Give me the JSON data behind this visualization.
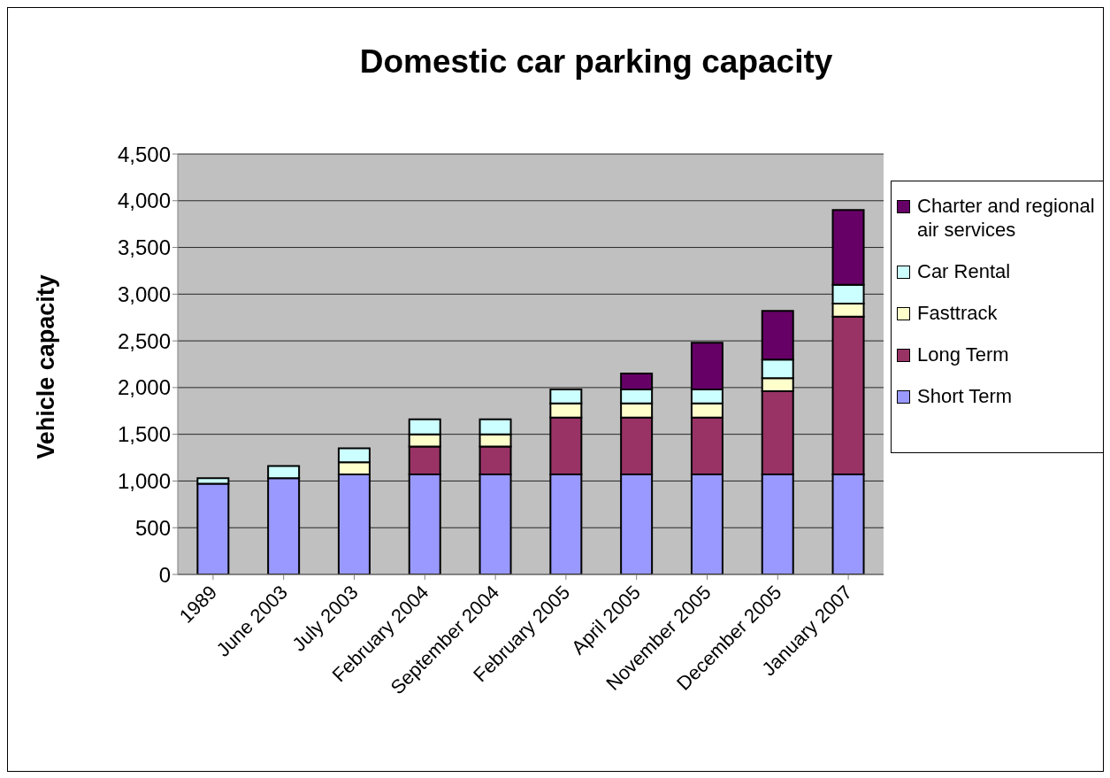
{
  "chart_data": {
    "type": "bar",
    "title": "Domestic car parking capacity",
    "ylabel": "Vehicle capacity",
    "categories": [
      "1989",
      "June 2003",
      "July 2003",
      "February 2004",
      "September 2004",
      "February 2005",
      "April 2005",
      "November 2005",
      "December 2005",
      "January 2007"
    ],
    "series": [
      {
        "name": "Short Term",
        "color": "#9999ff",
        "values": [
          970,
          1030,
          1070,
          1070,
          1070,
          1070,
          1070,
          1070,
          1070,
          1070
        ]
      },
      {
        "name": "Long Term",
        "color": "#993366",
        "values": [
          0,
          0,
          0,
          300,
          300,
          610,
          610,
          610,
          890,
          1690
        ]
      },
      {
        "name": "Fasttrack",
        "color": "#ffffcc",
        "values": [
          0,
          0,
          130,
          130,
          130,
          150,
          150,
          150,
          140,
          140
        ]
      },
      {
        "name": "Car Rental",
        "color": "#ccffff",
        "values": [
          60,
          130,
          150,
          160,
          160,
          150,
          150,
          150,
          200,
          200
        ]
      },
      {
        "name": "Charter and regional air services",
        "color": "#660066",
        "values": [
          0,
          0,
          0,
          0,
          0,
          0,
          170,
          500,
          520,
          800
        ]
      }
    ],
    "stacked": true,
    "ylim": [
      0,
      4500
    ],
    "yticks": [
      0,
      500,
      {
        "value": 1000,
        "label": "1,000"
      },
      {
        "value": 1500,
        "label": "1,500"
      },
      {
        "value": 2000,
        "label": "2,000"
      },
      {
        "value": 2500,
        "label": "2,500"
      },
      {
        "value": 3000,
        "label": "3,000"
      },
      {
        "value": 3500,
        "label": "3,500"
      },
      {
        "value": 4000,
        "label": "4,000"
      },
      {
        "value": 4500,
        "label": "4,500"
      }
    ],
    "grid": "y",
    "legend": "right"
  }
}
